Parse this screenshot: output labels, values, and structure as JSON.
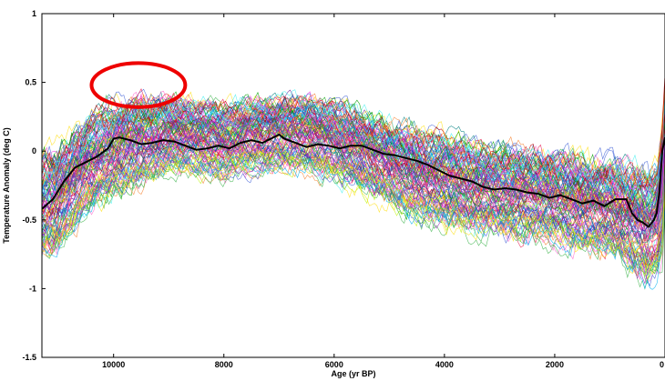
{
  "chart_data": {
    "type": "line",
    "title": "",
    "xlabel": "Age (yr BP)",
    "ylabel": "Temperature Anomaly (deg C)",
    "xlim": [
      11300,
      0
    ],
    "ylim": [
      -1.5,
      1
    ],
    "x_reversed": true,
    "x_ticks": [
      {
        "value": 10000,
        "label": "10000"
      },
      {
        "value": 8000,
        "label": "8000"
      },
      {
        "value": 6000,
        "label": "6000"
      },
      {
        "value": 4000,
        "label": "4000"
      },
      {
        "value": 2000,
        "label": "2000"
      },
      {
        "value": 0,
        "label": "0"
      }
    ],
    "y_ticks": [
      {
        "value": 1,
        "label": "1"
      },
      {
        "value": 0.5,
        "label": "0.5"
      },
      {
        "value": 0,
        "label": "0"
      },
      {
        "value": -0.5,
        "label": "-0.5"
      },
      {
        "value": -1,
        "label": "-1"
      },
      {
        "value": -1.5,
        "label": "-1.5"
      }
    ],
    "grid": false,
    "ensemble": {
      "member_count": 120,
      "colors": [
        "#e6194b",
        "#3cb44b",
        "#ffe119",
        "#4363d8",
        "#f58231",
        "#911eb4",
        "#46f0f0",
        "#f032e6",
        "#bcf60c",
        "#008080",
        "#1f3fbf",
        "#c00000",
        "#00a000",
        "#7030a0",
        "#00b0f0",
        "#ff66cc"
      ],
      "envelope_x": [
        11300,
        11000,
        10500,
        10000,
        9500,
        9000,
        8500,
        8000,
        7500,
        7000,
        6500,
        6000,
        5500,
        5000,
        4500,
        4000,
        3500,
        3000,
        2500,
        2000,
        1500,
        1000,
        700,
        500,
        300,
        150,
        50,
        0
      ],
      "envelope_upper": [
        0.05,
        0.1,
        0.3,
        0.42,
        0.47,
        0.45,
        0.42,
        0.4,
        0.42,
        0.45,
        0.45,
        0.42,
        0.35,
        0.28,
        0.22,
        0.18,
        0.12,
        0.1,
        0.08,
        0.05,
        0.02,
        0.0,
        -0.02,
        -0.05,
        -0.1,
        -0.05,
        0.3,
        0.6
      ],
      "envelope_lower": [
        -0.85,
        -0.8,
        -0.5,
        -0.4,
        -0.3,
        -0.2,
        -0.2,
        -0.25,
        -0.2,
        -0.18,
        -0.2,
        -0.25,
        -0.35,
        -0.45,
        -0.55,
        -0.6,
        -0.65,
        -0.68,
        -0.7,
        -0.72,
        -0.78,
        -0.82,
        -0.9,
        -0.95,
        -1.0,
        -0.95,
        -0.85,
        -0.5
      ]
    },
    "series": [
      {
        "role": "mean",
        "color": "#000000",
        "x": [
          11300,
          11100,
          10900,
          10700,
          10500,
          10300,
          10100,
          10000,
          9900,
          9700,
          9500,
          9300,
          9100,
          8900,
          8700,
          8500,
          8300,
          8100,
          7900,
          7700,
          7500,
          7300,
          7100,
          7000,
          6900,
          6700,
          6500,
          6300,
          6100,
          5900,
          5700,
          5500,
          5300,
          5100,
          4900,
          4700,
          4500,
          4300,
          4100,
          3900,
          3700,
          3500,
          3300,
          3100,
          2900,
          2700,
          2500,
          2300,
          2100,
          1900,
          1700,
          1500,
          1300,
          1100,
          900,
          700,
          600,
          500,
          400,
          300,
          200,
          150,
          100,
          50,
          0
        ],
        "y": [
          -0.42,
          -0.35,
          -0.22,
          -0.12,
          -0.08,
          -0.04,
          0.02,
          0.09,
          0.1,
          0.08,
          0.05,
          0.06,
          0.08,
          0.07,
          0.04,
          0.01,
          0.02,
          0.04,
          0.02,
          0.06,
          0.08,
          0.06,
          0.1,
          0.12,
          0.09,
          0.06,
          0.03,
          0.05,
          0.04,
          0.02,
          0.04,
          0.04,
          0.01,
          -0.02,
          -0.03,
          -0.05,
          -0.07,
          -0.1,
          -0.14,
          -0.18,
          -0.2,
          -0.22,
          -0.26,
          -0.28,
          -0.27,
          -0.28,
          -0.3,
          -0.31,
          -0.34,
          -0.32,
          -0.35,
          -0.38,
          -0.36,
          -0.4,
          -0.35,
          -0.35,
          -0.45,
          -0.5,
          -0.52,
          -0.55,
          -0.5,
          -0.45,
          -0.3,
          0.0,
          0.1
        ]
      }
    ],
    "annotations": [
      {
        "type": "circle",
        "color": "#ee0000",
        "cx": 9550,
        "cy": 0.48,
        "rx": 850,
        "ry": 0.16
      }
    ]
  }
}
